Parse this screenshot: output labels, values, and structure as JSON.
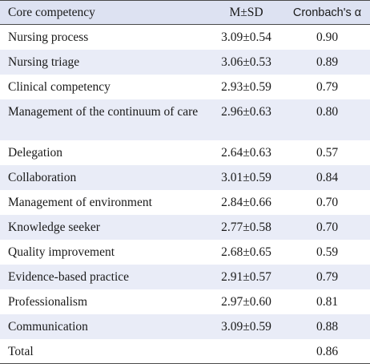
{
  "table": {
    "headers": {
      "competency": "Core competency",
      "msd": "M±SD",
      "alpha": "Cronbach's α"
    },
    "rows": [
      {
        "competency": "Nursing process",
        "msd": "3.09±0.54",
        "alpha": "0.90"
      },
      {
        "competency": "Nursing triage",
        "msd": "3.06±0.53",
        "alpha": "0.89"
      },
      {
        "competency": "Clinical competency",
        "msd": "2.93±0.59",
        "alpha": "0.79"
      },
      {
        "competency": "Management of the continuum of care",
        "msd": "2.96±0.63",
        "alpha": "0.80"
      },
      {
        "competency": "Delegation",
        "msd": "2.64±0.63",
        "alpha": "0.57"
      },
      {
        "competency": "Collaboration",
        "msd": "3.01±0.59",
        "alpha": "0.84"
      },
      {
        "competency": "Management of environment",
        "msd": "2.84±0.66",
        "alpha": "0.70"
      },
      {
        "competency": "Knowledge seeker",
        "msd": "2.77±0.58",
        "alpha": "0.70"
      },
      {
        "competency": "Quality improvement",
        "msd": "2.68±0.65",
        "alpha": "0.59"
      },
      {
        "competency": "Evidence-based practice",
        "msd": "2.91±0.57",
        "alpha": "0.79"
      },
      {
        "competency": "Professionalism",
        "msd": "2.97±0.60",
        "alpha": "0.81"
      },
      {
        "competency": "Communication",
        "msd": "3.09±0.59",
        "alpha": "0.88"
      },
      {
        "competency": "Total",
        "msd": "",
        "alpha": "0.86"
      }
    ]
  },
  "colors": {
    "header_bg": "#dde2f2",
    "stripe_bg": "#e9ecf7",
    "rule": "#4a4a4a"
  }
}
